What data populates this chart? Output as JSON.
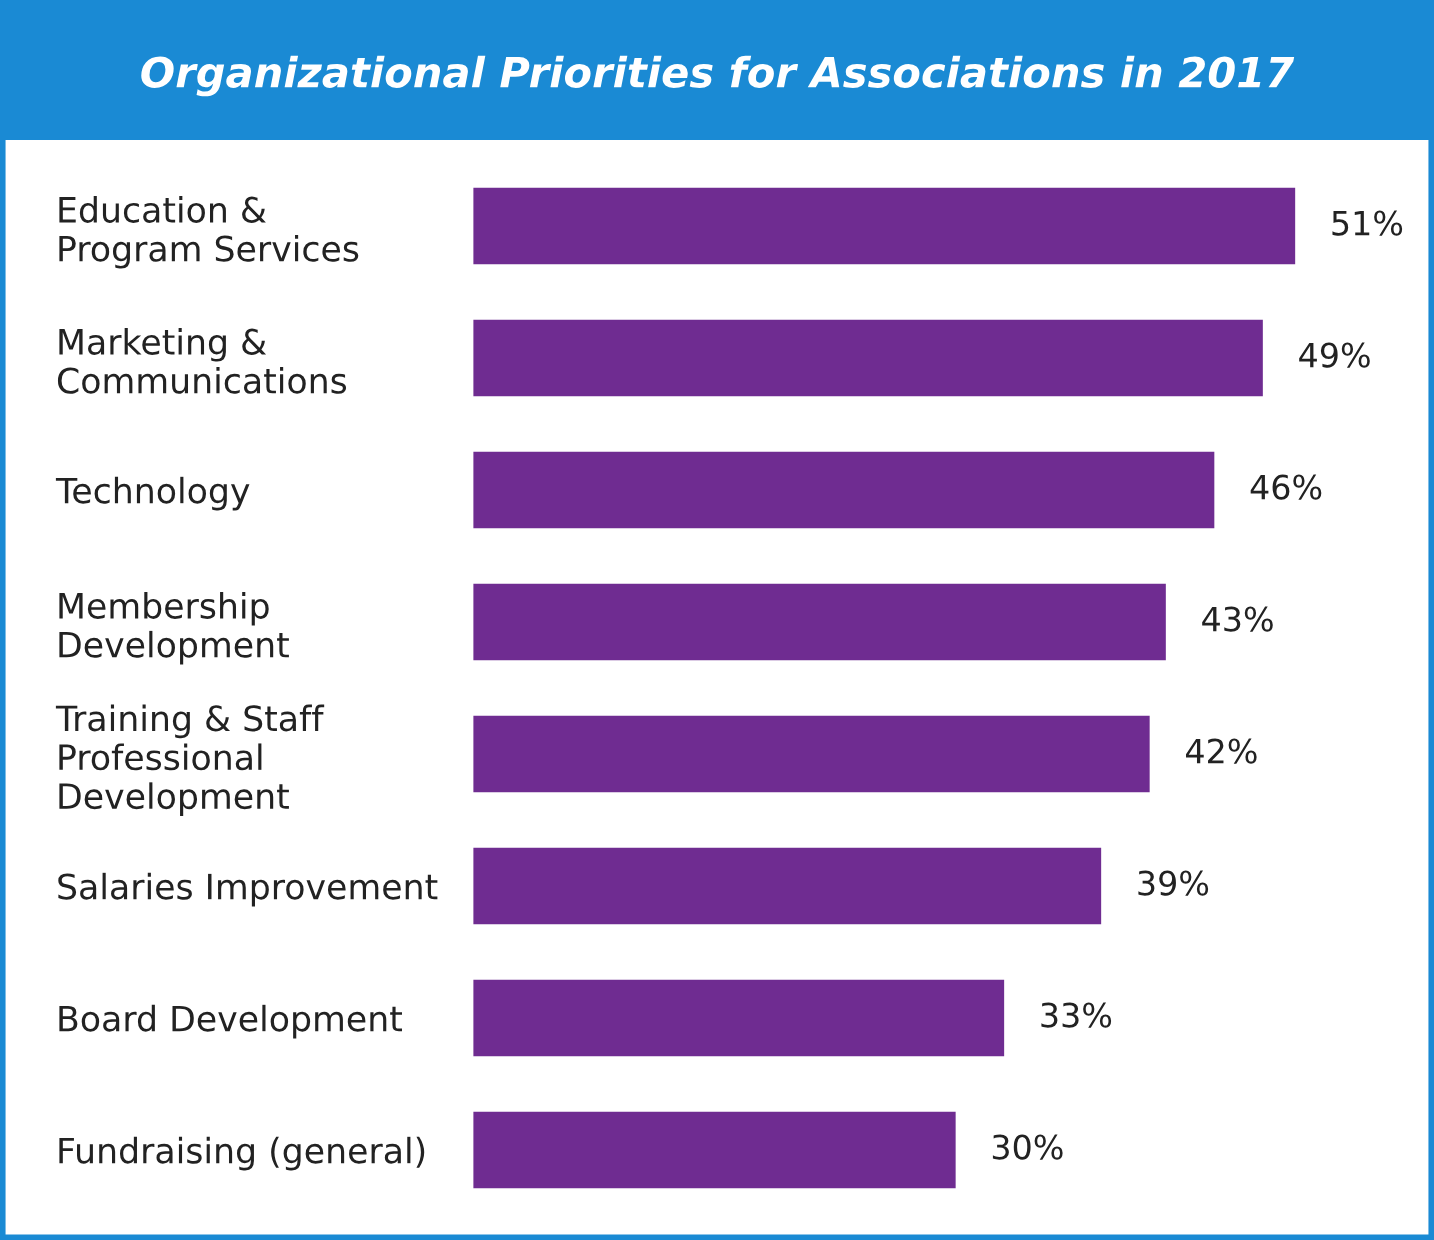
{
  "chart_data": {
    "type": "bar",
    "orientation": "horizontal",
    "title": "Organizational Priorities for Associations in 2017",
    "categories": [
      "Education &\nProgram Services",
      "Marketing &\nCommunications",
      "Technology",
      "Membership\nDevelopment",
      "Training & Staff\nProfessional\nDevelopment",
      "Salaries Improvement",
      "Board Development",
      "Fundraising (general)"
    ],
    "values": [
      51,
      49,
      46,
      43,
      42,
      39,
      33,
      30
    ],
    "value_labels": [
      "51%",
      "49%",
      "46%",
      "43%",
      "42%",
      "39%",
      "33%",
      "30%"
    ],
    "color": "#6f2c91",
    "tick_labels": "y",
    "grid": false,
    "legend": false
  }
}
